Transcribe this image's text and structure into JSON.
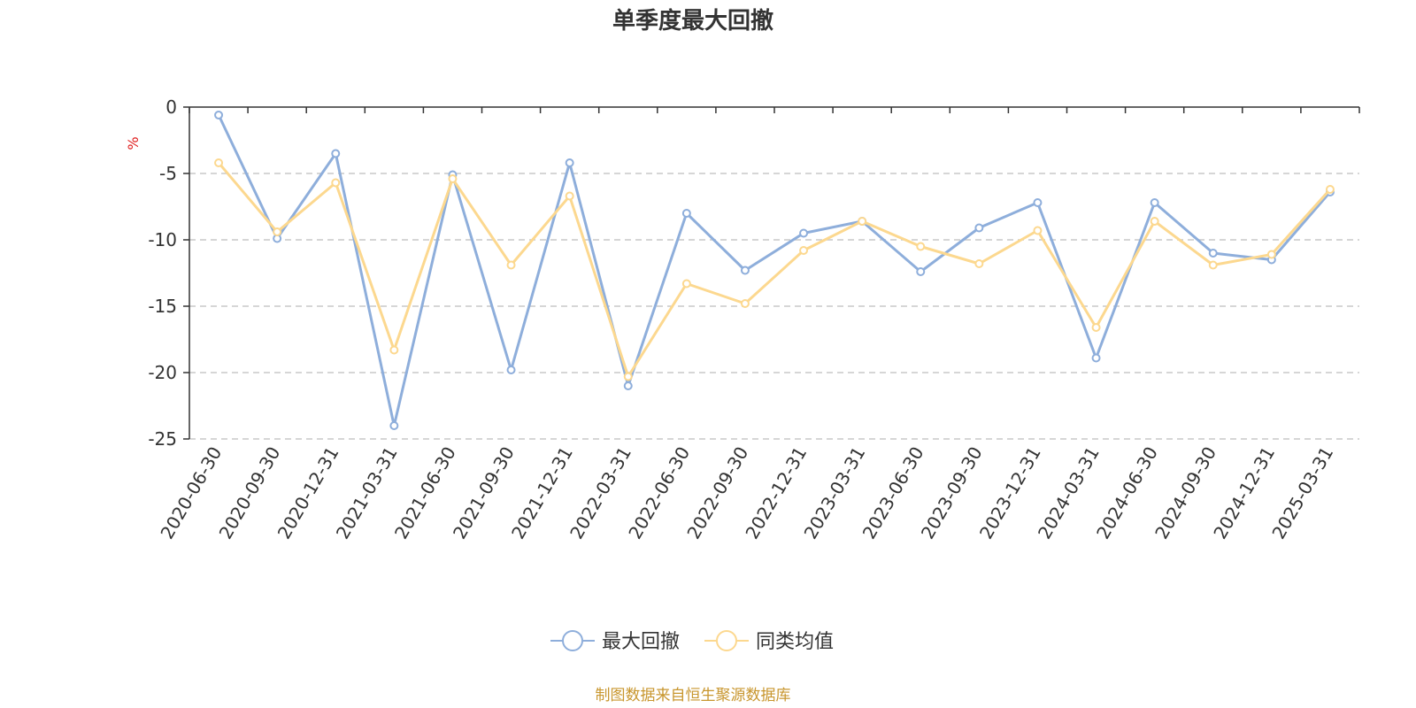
{
  "chart_data": {
    "type": "line",
    "title": "单季度最大回撤",
    "ylabel": "%",
    "ylim": [
      -25,
      0
    ],
    "yticks": [
      0,
      -5,
      -10,
      -15,
      -20,
      -25
    ],
    "grid": true,
    "legend_position": "bottom",
    "categories": [
      "2020-06-30",
      "2020-09-30",
      "2020-12-31",
      "2021-03-31",
      "2021-06-30",
      "2021-09-30",
      "2021-12-31",
      "2022-03-31",
      "2022-06-30",
      "2022-09-30",
      "2022-12-31",
      "2023-03-31",
      "2023-06-30",
      "2023-09-30",
      "2023-12-31",
      "2024-03-31",
      "2024-06-30",
      "2024-09-30",
      "2024-12-31",
      "2025-03-31"
    ],
    "series": [
      {
        "name": "最大回撤",
        "color": "#8eaedb",
        "values": [
          -0.6,
          -9.9,
          -3.5,
          -24.0,
          -5.1,
          -19.8,
          -4.2,
          -21.0,
          -8.0,
          -12.3,
          -9.5,
          -8.6,
          -12.4,
          -9.1,
          -7.2,
          -18.9,
          -7.2,
          -11.0,
          -11.5,
          -6.4
        ]
      },
      {
        "name": "同类均值",
        "color": "#fcd88f",
        "values": [
          -4.2,
          -9.4,
          -5.7,
          -18.3,
          -5.4,
          -11.9,
          -6.7,
          -20.3,
          -13.3,
          -14.8,
          -10.8,
          -8.6,
          -10.5,
          -11.8,
          -9.3,
          -16.6,
          -8.6,
          -11.9,
          -11.1,
          -6.2
        ]
      }
    ],
    "source_note": "制图数据来自恒生聚源数据库"
  }
}
